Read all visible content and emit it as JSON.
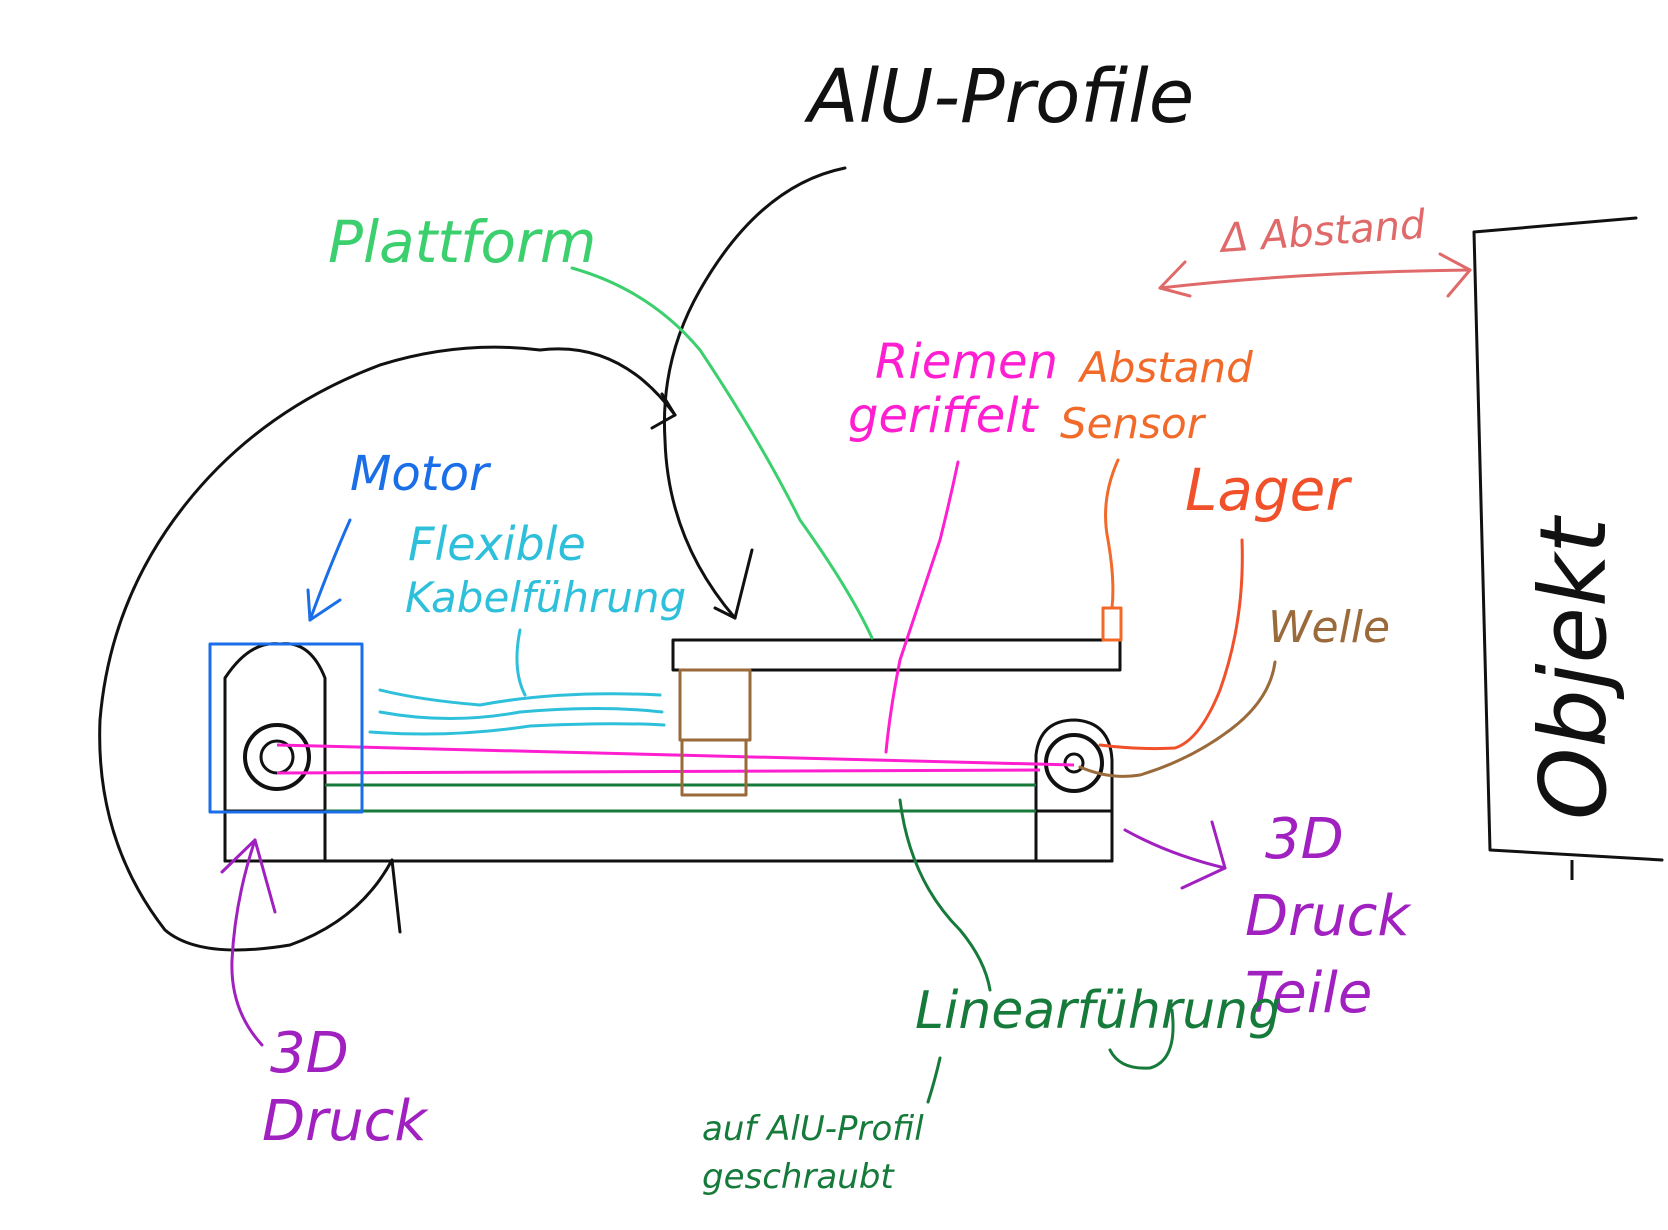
{
  "labels": {
    "alu_profile": "AlU-Profile",
    "plattform": "Plattform",
    "abstand": "Δ Abstand",
    "objekt": "Objekt",
    "riemen_line1": "Riemen",
    "riemen_line2": "geriffelt",
    "sensor_line1": "Abstand",
    "sensor_line2": "Sensor",
    "lager": "Lager",
    "welle": "Welle",
    "motor": "Motor",
    "kabel_line1": "Flexible",
    "kabel_line2": "Kabelführung",
    "druck_left_line1": "3D",
    "druck_left_line2": "Druck",
    "druck_right_line1": "3D",
    "druck_right_line2": "Druck",
    "druck_right_line3": "Teile",
    "linear": "Linearführung",
    "note_line1": "auf AlU-Profil",
    "note_line2": "geschraubt"
  },
  "colors": {
    "black": "#111111",
    "plattform": "#3ccf6e",
    "abstand": "#e06a6a",
    "riemen": "#ff1fd0",
    "sensor": "#f26a2a",
    "lager": "#f0502a",
    "welle": "#9a6a3a",
    "motor": "#1a6fe8",
    "kabel": "#2ec0da",
    "druck": "#a020c0",
    "linear": "#157a3a"
  }
}
